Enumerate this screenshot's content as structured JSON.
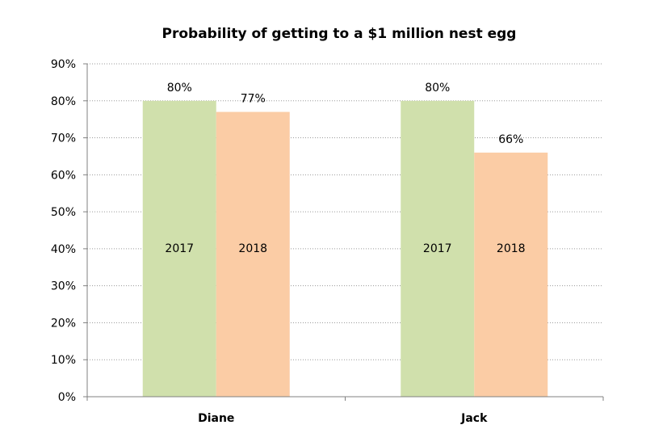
{
  "chart_data": {
    "type": "bar",
    "title": "Probability of getting to a $1 million nest egg",
    "categories": [
      "Diane",
      "Jack"
    ],
    "series": [
      {
        "name": "2017",
        "values": [
          80,
          80
        ],
        "data_labels": [
          "80%",
          "80%"
        ],
        "color": "#d0e0ac"
      },
      {
        "name": "2018",
        "values": [
          77,
          66
        ],
        "data_labels": [
          "77%",
          "66%"
        ],
        "color": "#fbcca5"
      }
    ],
    "ylim": [
      0,
      90
    ],
    "y_ticks": [
      "0%",
      "10%",
      "20%",
      "30%",
      "40%",
      "50%",
      "60%",
      "70%",
      "80%",
      "90%"
    ],
    "y_tick_values": [
      0,
      10,
      20,
      30,
      40,
      50,
      60,
      70,
      80,
      90
    ],
    "grid": "horizontal dotted",
    "legend": "none (series names printed inside bars)",
    "xlabel": "",
    "ylabel": ""
  }
}
